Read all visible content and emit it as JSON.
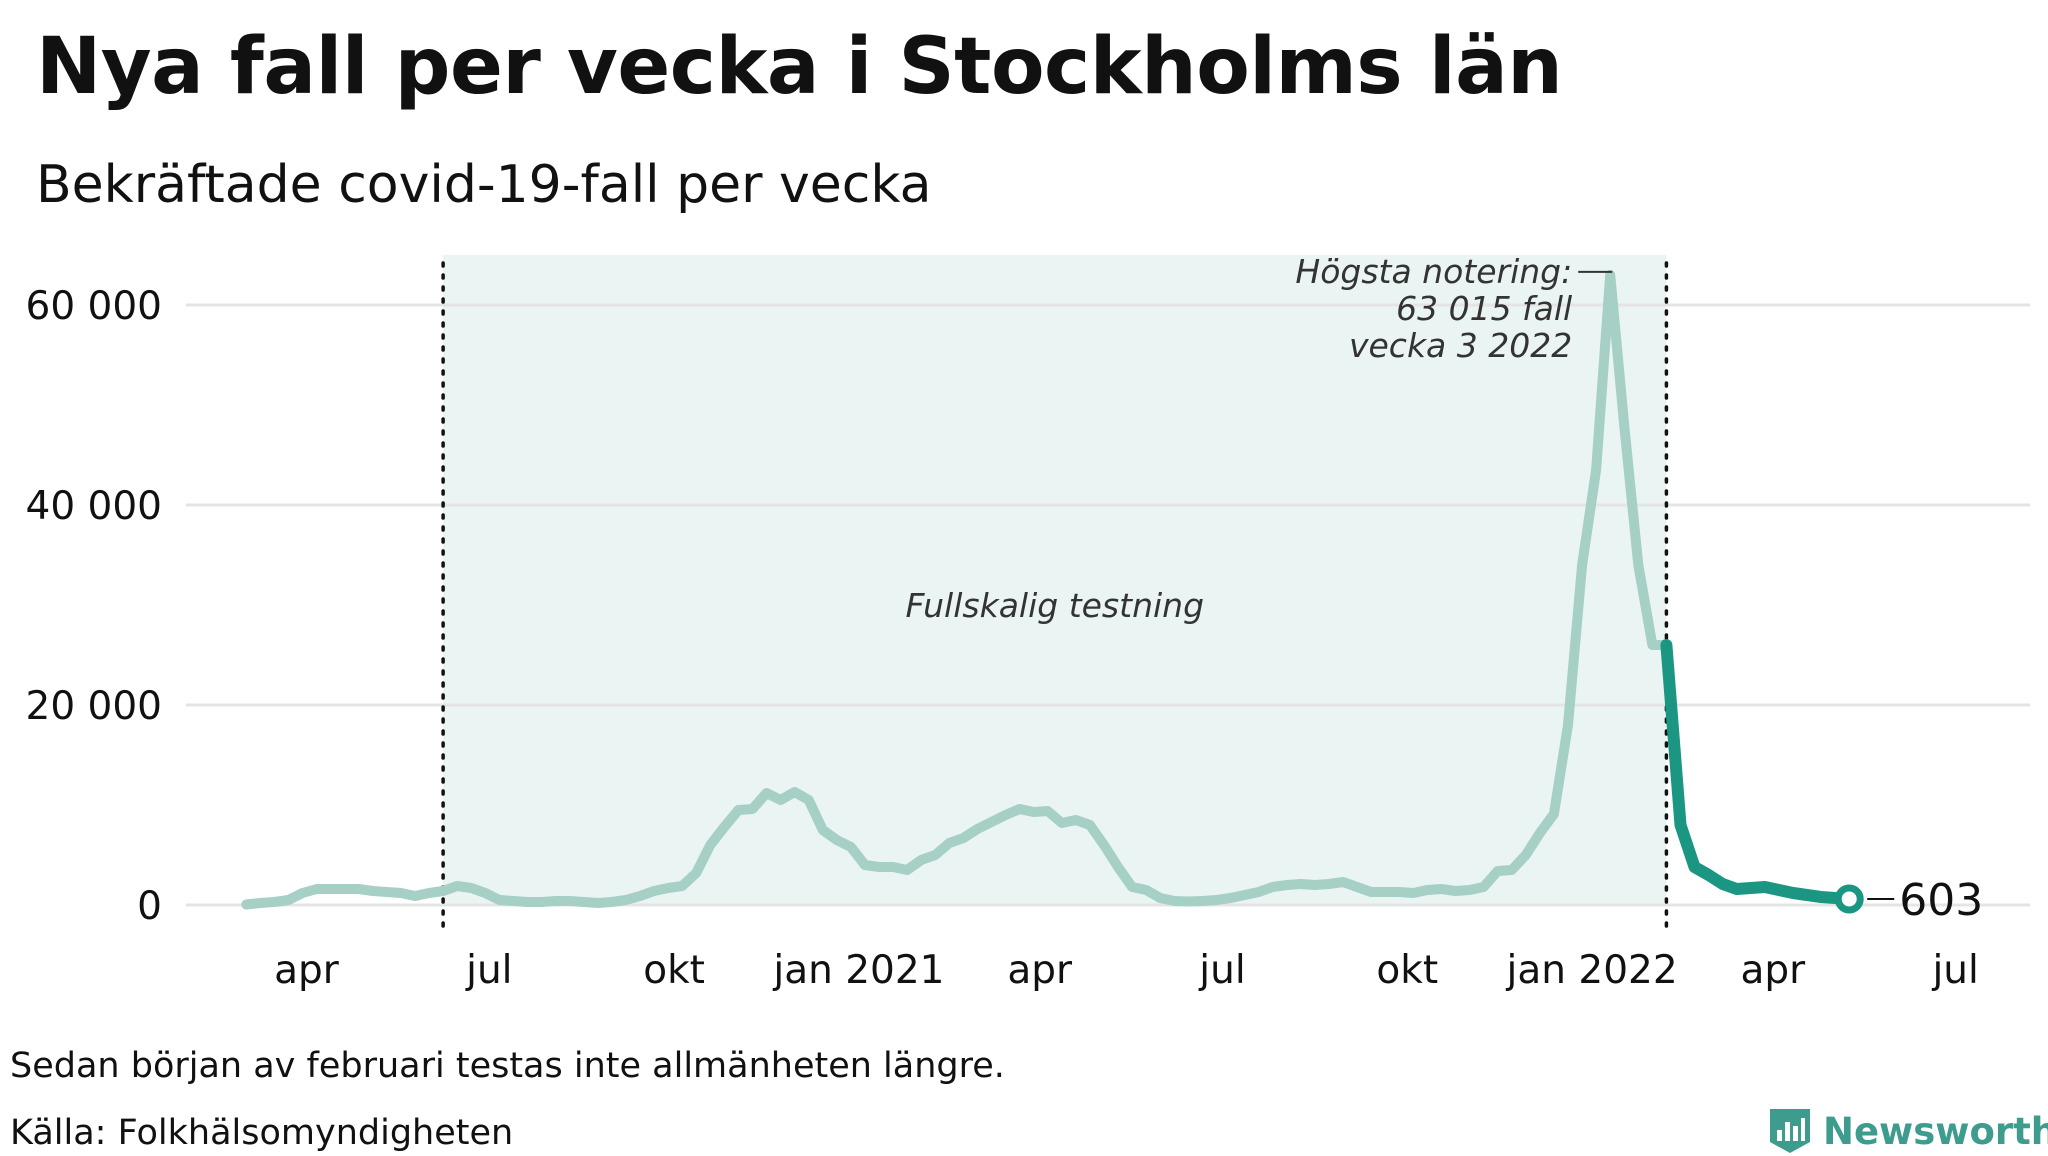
{
  "header": {
    "title": "Nya fall per vecka i Stockholms län",
    "subtitle": "Bekräftade covid-19-fall per vecka"
  },
  "footer": {
    "note": "Sedan början av februari testas inte allmänheten längre.",
    "source": "Källa: Folkhälsomyndigheten",
    "brand": "Newsworthy"
  },
  "colors": {
    "line_light": "#a6cfc6",
    "line_dark": "#1b9683",
    "shade": "#eaf4f3",
    "grid": "#e4e4e4",
    "brand": "#3d9c8d"
  },
  "chart_data": {
    "type": "line",
    "xlabel": "",
    "ylabel": "",
    "ylim": [
      0,
      65000
    ],
    "yticks": [
      0,
      20000,
      40000,
      60000
    ],
    "ytick_labels": [
      "0",
      "20 000",
      "40 000",
      "60 000"
    ],
    "xticks": [
      "2020-04-01",
      "2020-07-01",
      "2020-10-01",
      "2021-01-01",
      "2021-04-01",
      "2021-07-01",
      "2021-10-01",
      "2022-01-01",
      "2022-04-01",
      "2022-07-01"
    ],
    "xtick_labels": [
      "apr",
      "jul",
      "okt",
      "jan 2021",
      "apr",
      "jul",
      "okt",
      "jan 2022",
      "apr",
      "jul"
    ],
    "xlim": [
      "2020-02-01",
      "2022-08-07"
    ],
    "grid": true,
    "shaded_region": {
      "start": "2020-06-08",
      "end": "2022-02-07",
      "label": "Fullskalig testning"
    },
    "vertical_lines": [
      "2020-06-08",
      "2022-02-07"
    ],
    "series": [
      {
        "style": "light",
        "x": [
          "2020-03-02",
          "2020-03-09",
          "2020-03-16",
          "2020-03-23",
          "2020-03-30",
          "2020-04-06",
          "2020-04-13",
          "2020-04-20",
          "2020-04-27",
          "2020-05-04",
          "2020-05-11",
          "2020-05-18",
          "2020-05-25",
          "2020-06-01",
          "2020-06-08",
          "2020-06-15",
          "2020-06-22",
          "2020-06-29",
          "2020-07-06",
          "2020-07-13",
          "2020-07-20",
          "2020-07-27",
          "2020-08-03",
          "2020-08-10",
          "2020-08-17",
          "2020-08-24",
          "2020-08-31",
          "2020-09-07",
          "2020-09-14",
          "2020-09-21",
          "2020-09-28",
          "2020-10-05",
          "2020-10-12",
          "2020-10-19",
          "2020-10-26",
          "2020-11-02",
          "2020-11-09",
          "2020-11-16",
          "2020-11-23",
          "2020-11-30",
          "2020-12-07",
          "2020-12-14",
          "2020-12-21",
          "2020-12-28",
          "2021-01-04",
          "2021-01-11",
          "2021-01-18",
          "2021-01-25",
          "2021-02-01",
          "2021-02-08",
          "2021-02-15",
          "2021-02-22",
          "2021-03-01",
          "2021-03-08",
          "2021-03-15",
          "2021-03-22",
          "2021-03-29",
          "2021-04-05",
          "2021-04-12",
          "2021-04-19",
          "2021-04-26",
          "2021-05-03",
          "2021-05-10",
          "2021-05-17",
          "2021-05-24",
          "2021-05-31",
          "2021-06-07",
          "2021-06-14",
          "2021-06-21",
          "2021-06-28",
          "2021-07-05",
          "2021-07-12",
          "2021-07-19",
          "2021-07-26",
          "2021-08-02",
          "2021-08-09",
          "2021-08-16",
          "2021-08-23",
          "2021-08-30",
          "2021-09-06",
          "2021-09-13",
          "2021-09-20",
          "2021-09-27",
          "2021-10-04",
          "2021-10-11",
          "2021-10-18",
          "2021-10-25",
          "2021-11-01",
          "2021-11-08",
          "2021-11-15",
          "2021-11-22",
          "2021-11-29",
          "2021-12-06",
          "2021-12-13",
          "2021-12-20",
          "2021-12-27",
          "2022-01-03",
          "2022-01-10",
          "2022-01-17",
          "2022-01-24",
          "2022-01-31",
          "2022-02-07"
        ],
        "y": [
          50,
          200,
          300,
          500,
          1200,
          1600,
          1600,
          1600,
          1600,
          1400,
          1300,
          1200,
          900,
          1200,
          1400,
          1900,
          1700,
          1200,
          500,
          400,
          300,
          300,
          400,
          400,
          300,
          200,
          300,
          500,
          900,
          1400,
          1700,
          1900,
          3200,
          6000,
          7800,
          9500,
          9600,
          11200,
          10500,
          11300,
          10500,
          7500,
          6500,
          5800,
          4000,
          3800,
          3800,
          3500,
          4500,
          5000,
          6200,
          6700,
          7600,
          8300,
          9000,
          9600,
          9300,
          9400,
          8200,
          8500,
          8000,
          6000,
          3800,
          1800,
          1500,
          700,
          400,
          350,
          400,
          500,
          700,
          1000,
          1300,
          1800,
          2000,
          2100,
          2000,
          2100,
          2300,
          1800,
          1300,
          1300,
          1300,
          1200,
          1500,
          1600,
          1400,
          1500,
          1800,
          3400,
          3500,
          5000,
          7200,
          9100,
          18000,
          34000,
          43500,
          63015,
          48000,
          34000,
          26000,
          26000
        ]
      },
      {
        "style": "dark",
        "x": [
          "2022-02-07",
          "2022-02-14",
          "2022-02-21",
          "2022-02-28",
          "2022-03-07",
          "2022-03-14",
          "2022-03-21",
          "2022-03-28",
          "2022-04-04",
          "2022-04-11",
          "2022-04-18",
          "2022-04-25",
          "2022-05-02",
          "2022-05-09"
        ],
        "y": [
          26000,
          8000,
          3800,
          3000,
          2100,
          1600,
          1700,
          1800,
          1500,
          1200,
          1000,
          800,
          700,
          603
        ]
      }
    ],
    "annotations": [
      {
        "x": "2022-01-17",
        "y": 63015,
        "lines": [
          "Högsta notering:",
          "63 015 fall",
          "vecka 3 2022"
        ]
      },
      {
        "x": "2022-05-09",
        "y": 603,
        "label": "603"
      }
    ]
  }
}
